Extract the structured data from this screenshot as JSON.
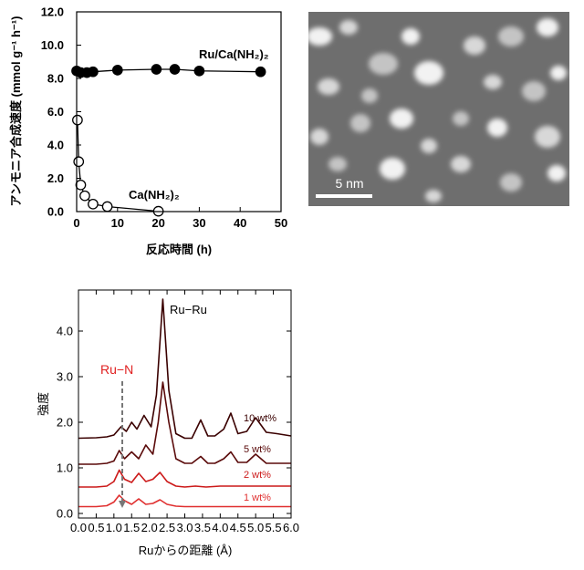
{
  "chart_data": [
    {
      "type": "line",
      "xlabel": "反応時間 (h)",
      "ylabel": "アンモニア合成速度 (mmol g⁻¹ h⁻¹)",
      "xlim": [
        0,
        50
      ],
      "ylim": [
        0,
        12
      ],
      "xticks": [
        "0",
        "10",
        "20",
        "30",
        "40",
        "50"
      ],
      "yticks": [
        "0.0",
        "2.0",
        "4.0",
        "6.0",
        "8.0",
        "10.0",
        "12.0"
      ],
      "series": [
        {
          "name": "Ru/Ca(NH₂)₂",
          "marker": "filled-circle",
          "x": [
            0,
            1,
            2.5,
            4,
            10,
            19.5,
            24,
            30,
            45
          ],
          "y": [
            8.45,
            8.35,
            8.35,
            8.4,
            8.5,
            8.55,
            8.55,
            8.45,
            8.4
          ]
        },
        {
          "name": "Ca(NH₂)₂",
          "marker": "open-circle",
          "x": [
            0.2,
            0.5,
            1,
            2,
            4,
            7.5,
            20
          ],
          "y": [
            5.5,
            3.0,
            1.6,
            0.95,
            0.45,
            0.3,
            0.02
          ]
        }
      ]
    },
    {
      "type": "image",
      "scale_bar": "5 nm"
    },
    {
      "type": "line",
      "xlabel": "Ruからの距離 (Å)",
      "ylabel": "強度",
      "xlim": [
        0,
        6
      ],
      "ylim": [
        -0.1,
        4.9
      ],
      "xticks": [
        "0.0",
        "0.5",
        "1.0",
        "1.5",
        "2.0",
        "2.5",
        "3.0",
        "3.5",
        "4.0",
        "4.5",
        "5.0",
        "5.5",
        "6.0"
      ],
      "yticks": [
        "0.0",
        "1.0",
        "2.0",
        "3.0",
        "4.0"
      ],
      "annotations": [
        "Ru−Ru",
        "Ru−N"
      ],
      "series": [
        {
          "name": "10 wt%",
          "color": "#3a0000",
          "x": [
            0,
            0.5,
            0.8,
            1.0,
            1.2,
            1.35,
            1.5,
            1.65,
            1.85,
            2.05,
            2.2,
            2.38,
            2.55,
            2.75,
            3.0,
            3.2,
            3.45,
            3.65,
            3.85,
            4.1,
            4.3,
            4.5,
            4.75,
            5.0,
            5.3,
            5.6,
            6.0
          ],
          "y": [
            1.65,
            1.66,
            1.68,
            1.72,
            1.9,
            1.8,
            2.0,
            1.85,
            2.15,
            1.9,
            2.6,
            4.7,
            2.7,
            1.75,
            1.65,
            1.65,
            2.05,
            1.7,
            1.7,
            1.85,
            2.2,
            1.75,
            1.8,
            2.1,
            1.78,
            1.75,
            1.7
          ]
        },
        {
          "name": "5 wt%",
          "color": "#5a0a0a",
          "x": [
            0,
            0.5,
            0.8,
            1.0,
            1.15,
            1.3,
            1.5,
            1.7,
            1.9,
            2.1,
            2.25,
            2.38,
            2.55,
            2.75,
            3.0,
            3.2,
            3.45,
            3.65,
            3.85,
            4.1,
            4.3,
            4.5,
            4.75,
            5.0,
            5.3,
            5.6,
            6.0
          ],
          "y": [
            1.08,
            1.08,
            1.1,
            1.15,
            1.38,
            1.2,
            1.35,
            1.2,
            1.5,
            1.3,
            2.0,
            2.88,
            2.0,
            1.2,
            1.1,
            1.1,
            1.25,
            1.1,
            1.1,
            1.2,
            1.35,
            1.12,
            1.12,
            1.3,
            1.1,
            1.1,
            1.1
          ]
        },
        {
          "name": "2 wt%",
          "color": "#cc1a1a",
          "x": [
            0,
            0.5,
            0.8,
            1.0,
            1.15,
            1.3,
            1.5,
            1.7,
            1.9,
            2.1,
            2.3,
            2.5,
            2.75,
            3.0,
            3.3,
            3.6,
            4.0,
            4.5,
            5.0,
            5.5,
            6.0
          ],
          "y": [
            0.58,
            0.58,
            0.6,
            0.7,
            0.95,
            0.75,
            0.68,
            0.88,
            0.7,
            0.75,
            0.9,
            0.7,
            0.6,
            0.58,
            0.6,
            0.58,
            0.6,
            0.6,
            0.6,
            0.6,
            0.6
          ]
        },
        {
          "name": "1 wt%",
          "color": "#e03030",
          "x": [
            0,
            0.5,
            0.8,
            1.0,
            1.15,
            1.3,
            1.5,
            1.7,
            1.9,
            2.1,
            2.3,
            2.5,
            2.75,
            3.0,
            3.5,
            4.0,
            4.5,
            5.0,
            5.5,
            6.0
          ],
          "y": [
            0.15,
            0.15,
            0.17,
            0.25,
            0.4,
            0.28,
            0.2,
            0.32,
            0.2,
            0.22,
            0.3,
            0.2,
            0.16,
            0.15,
            0.15,
            0.15,
            0.15,
            0.15,
            0.15,
            0.15
          ]
        }
      ]
    }
  ],
  "colors": {
    "ru_n_label": "#e02020",
    "ru_n_dash": "#777777"
  }
}
